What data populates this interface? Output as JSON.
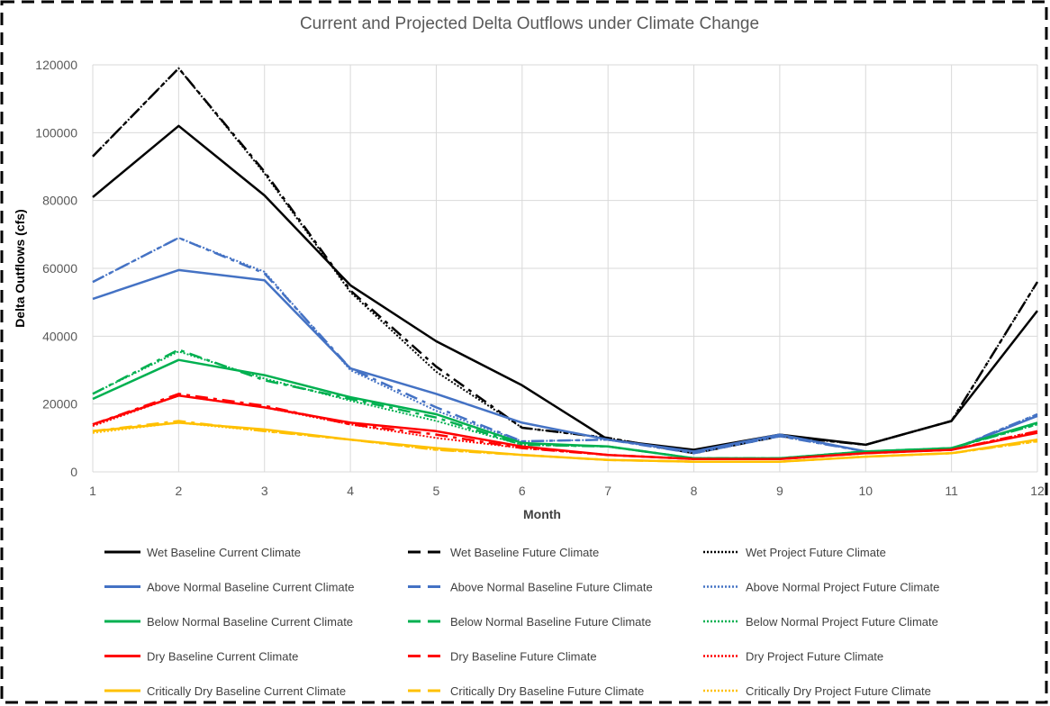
{
  "chart_data": {
    "type": "line",
    "title": "Current and Projected Delta Outflows under Climate Change",
    "xlabel": "Month",
    "ylabel": "Delta Outflows (cfs)",
    "x": [
      1,
      2,
      3,
      4,
      5,
      6,
      7,
      8,
      9,
      10,
      11,
      12
    ],
    "xlim": [
      1,
      12
    ],
    "ylim": [
      0,
      120000
    ],
    "yticks": [
      0,
      20000,
      40000,
      60000,
      80000,
      100000,
      120000
    ],
    "grid": "vertical and horizontal gridlines",
    "legend_position": "bottom",
    "series": [
      {
        "name": "Wet Baseline Current Climate",
        "color": "#000000",
        "dash": "solid",
        "values": [
          81000,
          102000,
          81500,
          55000,
          38500,
          25500,
          9500,
          6500,
          11000,
          8000,
          15000,
          47500
        ]
      },
      {
        "name": "Wet Baseline Future Climate",
        "color": "#000000",
        "dash": "dash",
        "values": [
          93000,
          119000,
          88500,
          53500,
          31000,
          13000,
          10000,
          5500,
          10500,
          8000,
          15000,
          56000
        ]
      },
      {
        "name": "Wet Project Future Climate",
        "color": "#000000",
        "dash": "dot",
        "values": [
          93000,
          119000,
          88000,
          53000,
          29500,
          13000,
          10000,
          5500,
          10500,
          8000,
          15000,
          56000
        ]
      },
      {
        "name": "Above Normal Baseline Current Climate",
        "color": "#4472c4",
        "dash": "solid",
        "values": [
          51000,
          59500,
          56500,
          30500,
          23000,
          14500,
          9500,
          6000,
          11000,
          6000,
          6500,
          16500
        ]
      },
      {
        "name": "Above Normal Baseline Future Climate",
        "color": "#4472c4",
        "dash": "dash",
        "values": [
          56000,
          69000,
          58500,
          30500,
          19000,
          9000,
          9500,
          5500,
          10500,
          6000,
          6500,
          17000
        ]
      },
      {
        "name": "Above Normal Project Future Climate",
        "color": "#4472c4",
        "dash": "dot",
        "values": [
          56000,
          69000,
          59000,
          30000,
          18000,
          9000,
          9500,
          5500,
          10500,
          6000,
          6500,
          17000
        ]
      },
      {
        "name": "Below Normal Baseline Current Climate",
        "color": "#00b050",
        "dash": "solid",
        "values": [
          21500,
          33000,
          28500,
          22000,
          17000,
          8500,
          7500,
          4000,
          4000,
          6000,
          7000,
          14500
        ]
      },
      {
        "name": "Below Normal Baseline Future Climate",
        "color": "#00b050",
        "dash": "dash",
        "values": [
          23000,
          36000,
          27000,
          21500,
          16000,
          8000,
          7500,
          4000,
          4000,
          6000,
          7000,
          14000
        ]
      },
      {
        "name": "Below Normal Project Future Climate",
        "color": "#00b050",
        "dash": "dot",
        "values": [
          23000,
          35500,
          27500,
          21000,
          15000,
          8000,
          7500,
          4000,
          4000,
          6000,
          7000,
          14000
        ]
      },
      {
        "name": "Dry Baseline Current Climate",
        "color": "#ff0000",
        "dash": "solid",
        "values": [
          14000,
          22500,
          19000,
          14500,
          12000,
          7500,
          5000,
          3800,
          3800,
          5500,
          6500,
          11500
        ]
      },
      {
        "name": "Dry Baseline Future Climate",
        "color": "#ff0000",
        "dash": "dash",
        "values": [
          14000,
          23000,
          19500,
          14000,
          11000,
          7000,
          5000,
          3800,
          3800,
          5500,
          6500,
          12000
        ]
      },
      {
        "name": "Dry Project Future Climate",
        "color": "#ff0000",
        "dash": "dot",
        "values": [
          13500,
          22500,
          19000,
          14000,
          10000,
          7000,
          5000,
          3800,
          3800,
          5500,
          6500,
          12000
        ]
      },
      {
        "name": "Critically Dry Baseline Current Climate",
        "color": "#ffc000",
        "dash": "solid",
        "values": [
          12000,
          14500,
          12500,
          9500,
          7000,
          5000,
          3500,
          3000,
          3000,
          4500,
          5500,
          9500
        ]
      },
      {
        "name": "Critically Dry Baseline Future Climate",
        "color": "#ffc000",
        "dash": "dash",
        "values": [
          12000,
          15000,
          12000,
          9500,
          6500,
          5000,
          3500,
          3000,
          3000,
          4500,
          5500,
          9000
        ]
      },
      {
        "name": "Critically Dry Project Future Climate",
        "color": "#ffc000",
        "dash": "dot",
        "values": [
          11500,
          14500,
          12000,
          9500,
          6500,
          5000,
          3500,
          3000,
          3000,
          4500,
          5500,
          9000
        ]
      }
    ]
  }
}
